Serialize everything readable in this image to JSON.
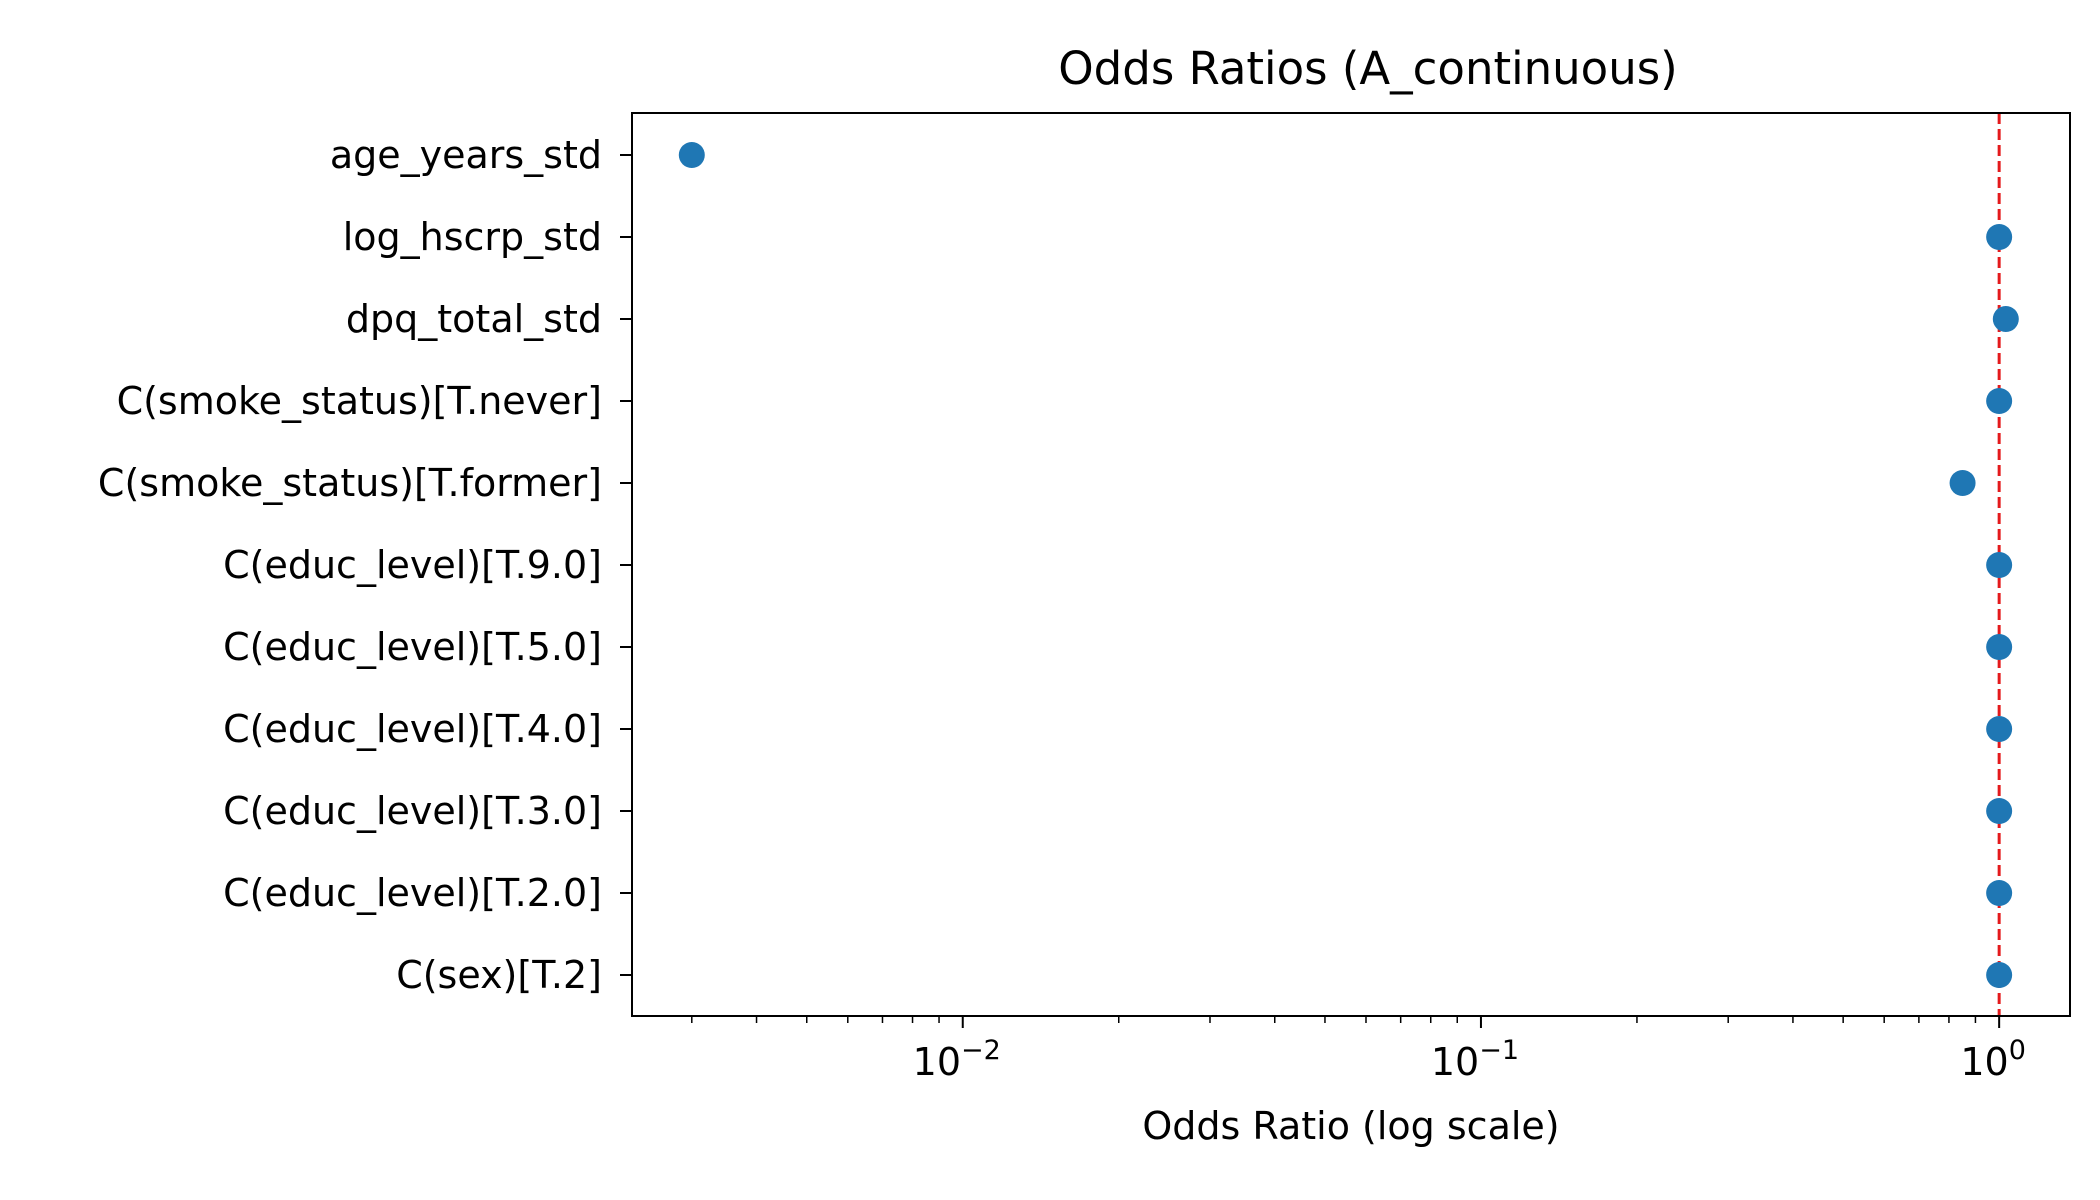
{
  "chart_data": {
    "type": "scatter",
    "title": "Odds Ratios (A_continuous)",
    "xlabel": "Odds Ratio (log scale)",
    "ylabel": "",
    "x_scale": "log",
    "xlim": [
      0.0023,
      1.37
    ],
    "x_ticks": [
      {
        "value": 0.01,
        "base": "10",
        "exp": "−2"
      },
      {
        "value": 0.1,
        "base": "10",
        "exp": "−1"
      },
      {
        "value": 1,
        "base": "10",
        "exp": "0"
      }
    ],
    "reference_line": {
      "x": 1.0,
      "color": "#e41a1c",
      "style": "dashed"
    },
    "marker_color": "#1f77b4",
    "grid": false,
    "categories": [
      "age_years_std",
      "log_hscrp_std",
      "dpq_total_std",
      "C(smoke_status)[T.never]",
      "C(smoke_status)[T.former]",
      "C(educ_level)[T.9.0]",
      "C(educ_level)[T.5.0]",
      "C(educ_level)[T.4.0]",
      "C(educ_level)[T.3.0]",
      "C(educ_level)[T.2.0]",
      "C(sex)[T.2]"
    ],
    "values": [
      0.003,
      1.0,
      1.03,
      1.0,
      0.85,
      1.0,
      1.0,
      1.0,
      1.0,
      1.0,
      1.0
    ]
  }
}
